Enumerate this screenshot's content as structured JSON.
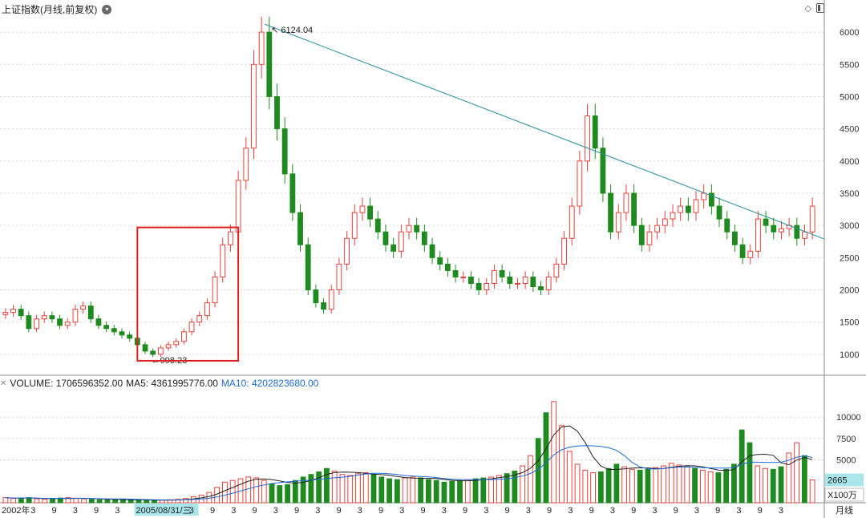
{
  "header": {
    "title": "上证指数(月线,前复权)"
  },
  "volume_legend": {
    "volume_label": "VOLUME: 1706596352.00",
    "ma5_label": "MA5: 4361995776.00",
    "ma10_label": "MA10: 4202823680.00"
  },
  "footer": {
    "period_label": "月线",
    "highlight_date": "2005/08/31/三",
    "start_year": "2002年"
  },
  "colors": {
    "up": "#e8413a",
    "down": "#1f8a1f",
    "trend": "#2a8f9c",
    "box": "#e0201e",
    "ma5": "#222222",
    "ma10": "#1e6bd6"
  },
  "chart_data": [
    {
      "type": "candlestick",
      "title": "上证指数(月线,前复权)",
      "y_ticks": [
        1000,
        1500,
        2000,
        2500,
        3000,
        3500,
        4000,
        4500,
        5000,
        5500,
        6000
      ],
      "ylim": [
        700,
        6250
      ],
      "x_tick_labels": [
        "2002年",
        "3",
        "9",
        "3",
        "9",
        "3",
        "2005/08/31/三",
        "3",
        "9",
        "3",
        "9",
        "3",
        "9",
        "3",
        "9",
        "3",
        "9",
        "3",
        "9",
        "3",
        "9",
        "3",
        "9",
        "3",
        "9",
        "3",
        "9",
        "3",
        "9",
        "3",
        "9",
        "3",
        "9",
        "3",
        "9",
        "3"
      ],
      "annotations": [
        {
          "text": "6124.04",
          "type": "high"
        },
        {
          "text": "998.23",
          "type": "low"
        }
      ],
      "trendline": {
        "from": 6124.04,
        "to": 2790
      },
      "highlight_box": {
        "low": 900,
        "high": 2970
      },
      "close_path": [
        1650,
        1700,
        1600,
        1400,
        1550,
        1600,
        1550,
        1450,
        1500,
        1700,
        1750,
        1550,
        1450,
        1400,
        1350,
        1300,
        1250,
        1150,
        1050,
        1000,
        1100,
        1150,
        1200,
        1350,
        1500,
        1600,
        1800,
        2200,
        2700,
        2900,
        3700,
        4200,
        5500,
        6000,
        5000,
        4500,
        3800,
        3200,
        2700,
        2000,
        1800,
        1700,
        2000,
        2400,
        2800,
        3200,
        3300,
        3100,
        2900,
        2700,
        2600,
        2900,
        3000,
        2900,
        2700,
        2500,
        2400,
        2300,
        2200,
        2200,
        2100,
        2000,
        2100,
        2300,
        2200,
        2100,
        2100,
        2200,
        2050,
        2000,
        2200,
        2400,
        2800,
        3300,
        4000,
        4700,
        4200,
        3500,
        2900,
        3200,
        3500,
        3000,
        2700,
        2900,
        3000,
        3100,
        3200,
        3300,
        3200,
        3400,
        3500,
        3300,
        3100,
        2900,
        2700,
        2500,
        2600,
        3100,
        3000,
        2900,
        2950,
        3000,
        2800,
        2900,
        3300
      ]
    },
    {
      "type": "bar",
      "title": "VOLUME",
      "y_ticks": [
        5000,
        7500,
        10000
      ],
      "ylim": [
        0,
        13000
      ],
      "current_value_tag": "2665",
      "unit_label": "X100万",
      "series": [
        {
          "name": "VOLUME",
          "values": [
            600,
            500,
            550,
            600,
            450,
            400,
            500,
            550,
            600,
            500,
            450,
            400,
            350,
            400,
            380,
            350,
            320,
            300,
            280,
            300,
            320,
            350,
            400,
            500,
            700,
            900,
            1200,
            1800,
            2400,
            2600,
            2800,
            3000,
            2900,
            2600,
            2200,
            2000,
            2100,
            2600,
            3000,
            3300,
            3600,
            4000,
            3700,
            3300,
            3200,
            3400,
            3500,
            3300,
            3000,
            2800,
            2700,
            2900,
            3000,
            2900,
            2700,
            2600,
            2400,
            2500,
            2600,
            2700,
            2800,
            2900,
            3000,
            3200,
            3400,
            3700,
            4300,
            5500,
            7500,
            10500,
            11800,
            9000,
            6000,
            4500,
            3800,
            3500,
            3600,
            4000,
            4500,
            4200,
            3900,
            3800,
            3900,
            4100,
            4300,
            4600,
            4400,
            4200,
            4000,
            3800,
            3600,
            3500,
            3900,
            4500,
            8500,
            7000,
            4300,
            4000,
            3900,
            4200,
            5800,
            7000,
            5500,
            2665
          ]
        },
        {
          "name": "MA5",
          "values": []
        },
        {
          "name": "MA10",
          "values": []
        }
      ]
    }
  ]
}
